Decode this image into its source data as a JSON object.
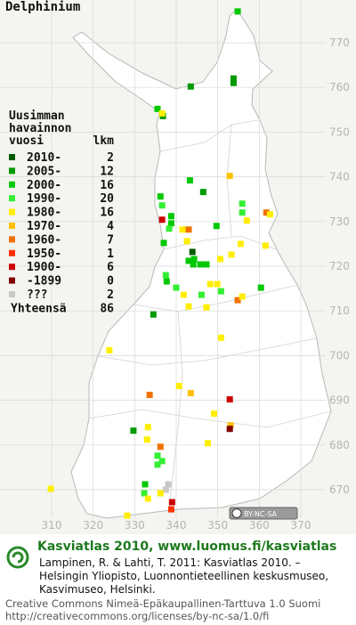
{
  "title": "Delphinium",
  "map": {
    "x_ticks": [
      310,
      320,
      330,
      340,
      350,
      360,
      370
    ],
    "y_ticks": [
      670,
      680,
      690,
      700,
      710,
      720,
      730,
      740,
      750,
      760,
      770
    ],
    "observations": [
      [
        354.8,
        777,
        2
      ],
      [
        353.8,
        762,
        1
      ],
      [
        353.8,
        761,
        1
      ],
      [
        335.5,
        755.2,
        2
      ],
      [
        336.8,
        753.6,
        1
      ],
      [
        336.6,
        754.2,
        4
      ],
      [
        343.5,
        760.2,
        1
      ],
      [
        352.9,
        740.2,
        5
      ],
      [
        346.5,
        736.6,
        1
      ],
      [
        343.3,
        739.2,
        2
      ],
      [
        336.2,
        735.6,
        2
      ],
      [
        336.6,
        733.6,
        3
      ],
      [
        338.8,
        731.2,
        2
      ],
      [
        338.8,
        729.6,
        2
      ],
      [
        336.6,
        730.4,
        8
      ],
      [
        338.3,
        728.4,
        3
      ],
      [
        341.5,
        728.2,
        4
      ],
      [
        343.0,
        728.2,
        6
      ],
      [
        349.7,
        729,
        2
      ],
      [
        355.9,
        734,
        3
      ],
      [
        355.9,
        732,
        3
      ],
      [
        361.7,
        732,
        6
      ],
      [
        362.6,
        731.6,
        4
      ],
      [
        357.0,
        730.2,
        4
      ],
      [
        355.5,
        725,
        4
      ],
      [
        361.5,
        724.6,
        4
      ],
      [
        342.6,
        725.6,
        4
      ],
      [
        337.0,
        725.2,
        2
      ],
      [
        343.9,
        723.2,
        0
      ],
      [
        343.0,
        721.2,
        2
      ],
      [
        344.1,
        720.4,
        2
      ],
      [
        345.8,
        720.4,
        2
      ],
      [
        347.3,
        720.4,
        2
      ],
      [
        344.3,
        721.6,
        2
      ],
      [
        350.6,
        721.6,
        4
      ],
      [
        353.3,
        722.6,
        4
      ],
      [
        337.5,
        718,
        3
      ],
      [
        337.7,
        716.6,
        2
      ],
      [
        348.2,
        716,
        4
      ],
      [
        349.9,
        716,
        4
      ],
      [
        340.0,
        715.2,
        3
      ],
      [
        346.1,
        713.6,
        3
      ],
      [
        341.8,
        713.6,
        4
      ],
      [
        350.8,
        714.4,
        3
      ],
      [
        347.3,
        710.8,
        4
      ],
      [
        343.0,
        711,
        4
      ],
      [
        354.8,
        712.4,
        6
      ],
      [
        355.9,
        713.2,
        4
      ],
      [
        360.4,
        715.2,
        2
      ],
      [
        334.5,
        709.2,
        1
      ],
      [
        350.8,
        704,
        4
      ],
      [
        323.9,
        701.2,
        4
      ],
      [
        340.7,
        693.2,
        4
      ],
      [
        333.6,
        691.2,
        6
      ],
      [
        343.5,
        691.6,
        5
      ],
      [
        352.9,
        690.2,
        8
      ],
      [
        349.1,
        687,
        4
      ],
      [
        353.1,
        684.4,
        5
      ],
      [
        352.9,
        683.6,
        9
      ],
      [
        329.7,
        683.2,
        1
      ],
      [
        333.0,
        681.2,
        4
      ],
      [
        333.2,
        684,
        4
      ],
      [
        347.6,
        680.4,
        4
      ],
      [
        336.2,
        679.6,
        6
      ],
      [
        335.5,
        677.6,
        3
      ],
      [
        336.6,
        676.4,
        3
      ],
      [
        335.5,
        675.6,
        3
      ],
      [
        332.5,
        671.2,
        2
      ],
      [
        332.3,
        669.2,
        3
      ],
      [
        338.1,
        671.2,
        10
      ],
      [
        337.5,
        670,
        10
      ],
      [
        336.2,
        669.2,
        4
      ],
      [
        333.2,
        668,
        4
      ],
      [
        339.0,
        667.2,
        8
      ],
      [
        338.8,
        665.6,
        7
      ],
      [
        309.8,
        670.2,
        4
      ],
      [
        328.2,
        664.2,
        4
      ]
    ]
  },
  "legend": {
    "heading": [
      "Uusimman",
      "havainnon",
      "vuosi"
    ],
    "count_heading": "lkm",
    "rows": [
      {
        "label": "2010-",
        "count": 2,
        "color": "#005a00"
      },
      {
        "label": "2005-",
        "count": 12,
        "color": "#009a00"
      },
      {
        "label": "2000-",
        "count": 16,
        "color": "#00c800"
      },
      {
        "label": "1990-",
        "count": 20,
        "color": "#33ee33"
      },
      {
        "label": "1980-",
        "count": 16,
        "color": "#ffee00"
      },
      {
        "label": "1970-",
        "count": 4,
        "color": "#ffc000"
      },
      {
        "label": "1960-",
        "count": 7,
        "color": "#f07000"
      },
      {
        "label": "1950-",
        "count": 1,
        "color": "#ff3000"
      },
      {
        "label": "1900-",
        "count": 6,
        "color": "#cc0000"
      },
      {
        "label": "-1899",
        "count": 0,
        "color": "#800000"
      },
      {
        "label": "???",
        "count": 2,
        "color": "#c8c8c8"
      }
    ],
    "total_label": "Yhteensä",
    "total": 86
  },
  "badge": "BY-NC-SA",
  "footer": {
    "brand": "Kasviatlas 2010, www.luomus.fi/kasviatlas",
    "citation": [
      "Lampinen, R. & Lahti, T. 2011: Kasviatlas 2010. –",
      "Helsingin Yliopisto, Luonnontieteellinen keskusmuseo,",
      "Kasvimuseo, Helsinki."
    ],
    "license": [
      "Creative Commons Nimeä-Epäkaupallinen-Tarttuva 1.0 Suomi",
      "http://creativecommons.org/licenses/by-nc-sa/1.0/fi"
    ]
  }
}
